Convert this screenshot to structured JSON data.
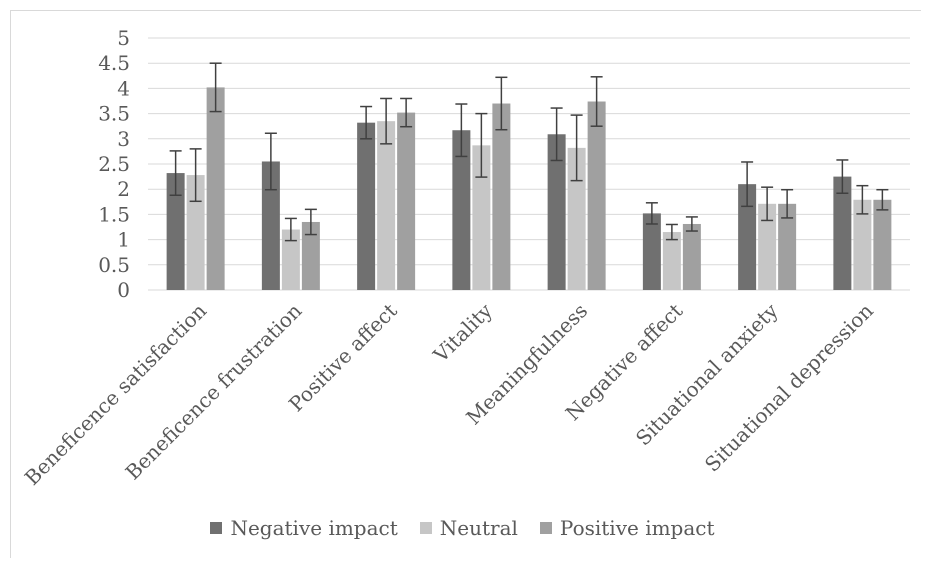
{
  "chart_data": {
    "type": "bar",
    "title": "",
    "xlabel": "",
    "ylabel": "",
    "ylim": [
      0,
      5
    ],
    "yticks": [
      "0",
      "0.5",
      "1",
      "1.5",
      "2",
      "2.5",
      "3",
      "3.5",
      "4",
      "4.5",
      "5"
    ],
    "grid": true,
    "legend_position": "bottom",
    "error_bars": true,
    "categories": [
      "Beneficence satisfaction",
      "Beneficence frustration",
      "Positive affect",
      "Vitality",
      "Meaningfulness",
      "Negative affect",
      "Situational anxiety",
      "Situational depression"
    ],
    "series": [
      {
        "name": "Negative impact",
        "color": "#707070",
        "values": [
          2.32,
          2.55,
          3.32,
          3.17,
          3.09,
          1.52,
          2.1,
          2.25
        ],
        "errors": [
          0.44,
          0.56,
          0.32,
          0.52,
          0.52,
          0.21,
          0.44,
          0.33
        ]
      },
      {
        "name": "Neutral",
        "color": "#c6c6c6",
        "values": [
          2.28,
          1.2,
          3.35,
          2.87,
          2.82,
          1.15,
          1.71,
          1.79
        ],
        "errors": [
          0.52,
          0.22,
          0.45,
          0.63,
          0.65,
          0.15,
          0.33,
          0.28
        ]
      },
      {
        "name": "Positive impact",
        "color": "#a0a0a0",
        "values": [
          4.02,
          1.35,
          3.52,
          3.7,
          3.74,
          1.31,
          1.71,
          1.79
        ],
        "errors": [
          0.48,
          0.25,
          0.28,
          0.52,
          0.49,
          0.14,
          0.28,
          0.2
        ]
      }
    ]
  }
}
